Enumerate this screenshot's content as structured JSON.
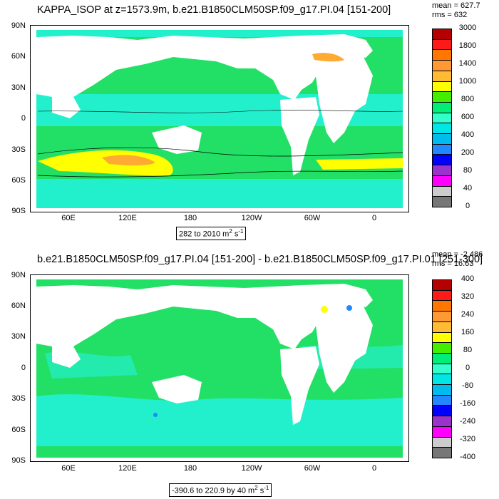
{
  "top": {
    "title": "KAPPA_ISOP at z=1573.9m, b.e21.B1850CLM50SP.f09_g17.PI.04 [151-200]",
    "stat_mean": "mean = 627.7",
    "stat_rms": "rms = 632",
    "range_prefix": "282 to 2010 m",
    "range_unit_sup": "2",
    "range_unit_s": " s",
    "range_unit_sup2": "-1",
    "colorbar_labels": [
      "3000",
      "1800",
      "1400",
      "1000",
      "800",
      "600",
      "400",
      "200",
      "80",
      "40",
      "0"
    ],
    "colorbar_colors": [
      "#b40000",
      "#ff1a1a",
      "#ff7700",
      "#ff9933",
      "#ffbb33",
      "#ffff00",
      "#44ee00",
      "#00ee77",
      "#33ffcc",
      "#00e6e6",
      "#00bbee",
      "#2288ff",
      "#0000ff",
      "#9933cc",
      "#ff00ff",
      "#cccccc",
      "#777777"
    ]
  },
  "bottom": {
    "title": "b.e21.B1850CLM50SP.f09_g17.PI.04 [151-200] - b.e21.B1850CLM50SP.f09_g17.PI.01 [251-300]",
    "stat_mean": "mean = -2.486",
    "stat_rms": "rms = 16.63",
    "range_prefix": "-390.6 to 220.9 by 40 m",
    "range_unit_sup": "2",
    "range_unit_s": " s",
    "range_unit_sup2": "-1",
    "colorbar_labels": [
      "400",
      "320",
      "240",
      "160",
      "80",
      "0",
      "-80",
      "-160",
      "-240",
      "-320",
      "-400"
    ],
    "colorbar_colors": [
      "#b40000",
      "#ff1a1a",
      "#ff7700",
      "#ff9933",
      "#ffbb33",
      "#ffff00",
      "#44ee00",
      "#00ee77",
      "#33ffcc",
      "#00e6e6",
      "#00bbee",
      "#2288ff",
      "#0000ff",
      "#9933cc",
      "#ff00ff",
      "#cccccc",
      "#777777"
    ]
  },
  "axes": {
    "lat_ticks": [
      "90N",
      "60N",
      "30N",
      "0",
      "30S",
      "60S",
      "90S"
    ],
    "lon_ticks": [
      "60E",
      "120E",
      "180",
      "120W",
      "60W",
      "0"
    ]
  },
  "colors": {
    "ocean_green": "#22e066",
    "ocean_cyan": "#22f0cc",
    "land": "#ffffff",
    "yellow": "#ffff00",
    "orange": "#ffaa33"
  }
}
